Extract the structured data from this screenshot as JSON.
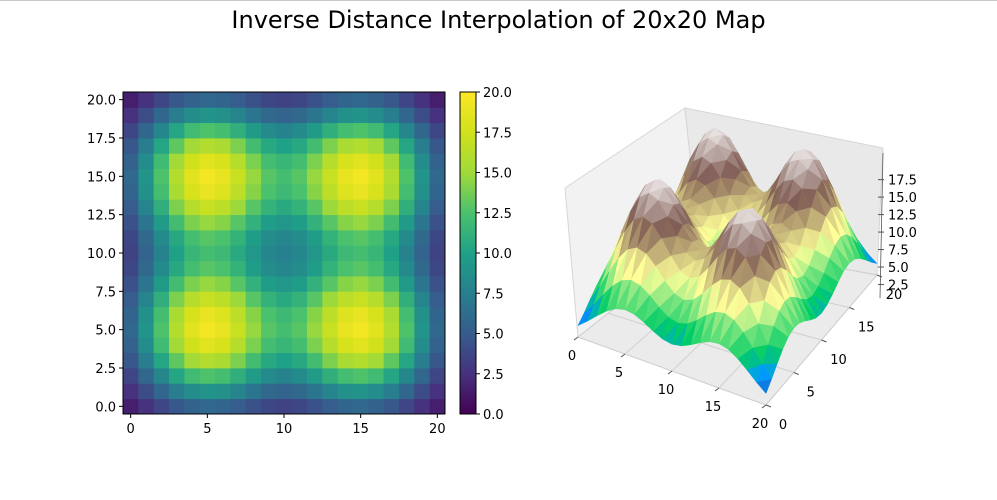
{
  "figure": {
    "title": "Inverse Distance Interpolation of 20x20 Map"
  },
  "chart_data": [
    {
      "type": "heatmap",
      "title": "",
      "xlabel": "",
      "ylabel": "",
      "grid_size": 21,
      "x_ticks": [
        "0",
        "5",
        "10",
        "15",
        "20"
      ],
      "y_ticks": [
        "0.0",
        "2.5",
        "5.0",
        "7.5",
        "10.0",
        "12.5",
        "15.0",
        "17.5",
        "20.0"
      ],
      "xlim": [
        -0.5,
        20.5
      ],
      "ylim": [
        -0.5,
        20.5
      ],
      "peaks": [
        [
          5,
          5
        ],
        [
          5,
          15
        ],
        [
          15,
          5
        ],
        [
          15,
          15
        ]
      ],
      "peak_value": 20,
      "center_value": 11,
      "corner_value": 0,
      "colormap": "viridis",
      "colorbar": {
        "ticks": [
          "0.0",
          "2.5",
          "5.0",
          "7.5",
          "10.0",
          "12.5",
          "15.0",
          "17.5",
          "20.0"
        ],
        "range": [
          0,
          20
        ]
      }
    },
    {
      "type": "surface",
      "title": "",
      "x_ticks": [
        "0",
        "5",
        "10",
        "15",
        "20"
      ],
      "y_ticks": [
        "0",
        "5",
        "10",
        "15",
        "20"
      ],
      "z_ticks": [
        "2.5",
        "5.0",
        "7.5",
        "10.0",
        "12.5",
        "15.0",
        "17.5"
      ],
      "zlim": [
        0,
        20
      ],
      "colormap": "terrain"
    }
  ]
}
